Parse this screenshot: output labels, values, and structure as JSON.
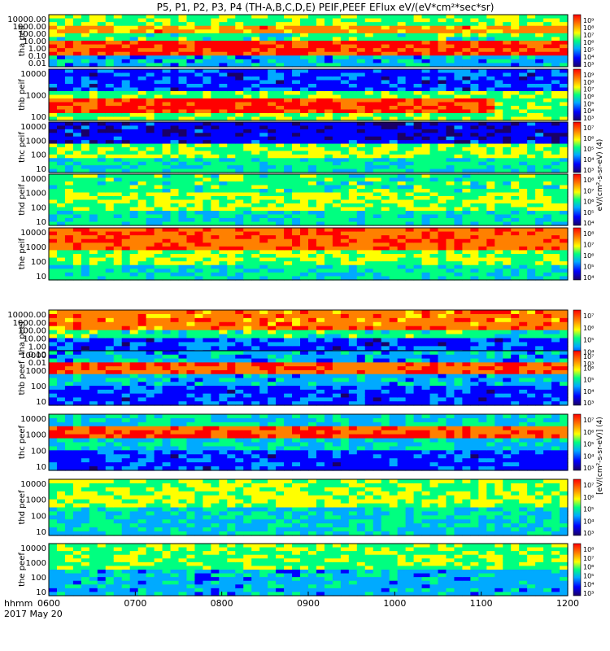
{
  "title": "P5, P1, P2, P3, P4 (TH-A,B,C,D,E) PEIF,PEEF EFlux eV/(eV*cm²*sec*sr)",
  "colormap": [
    "#1a0066",
    "#0000ff",
    "#00aaff",
    "#00ff80",
    "#ffff00",
    "#ff8000",
    "#ff0000"
  ],
  "time_axis": {
    "ticks": [
      "0600",
      "0700",
      "0800",
      "0900",
      "1000",
      "1100",
      "1200"
    ],
    "label_top": "hhmm",
    "label_bottom": "2017 May 20"
  },
  "colorbar_label_ion": "eV/(cm²-s-sr-eV)  (4)",
  "colorbar_label_electron": "[eV/(cm²-s-sr-eV)] (4)",
  "chart_data": {
    "type": "heatmap",
    "x_range": [
      "06:00",
      "12:00"
    ],
    "panels": [
      {
        "name": "tha peif",
        "ylabels": [
          "10000.00",
          "1000.00",
          "100.00",
          "10.00",
          "1.00",
          "0.10",
          "0.01"
        ],
        "cbar": [
          "10⁹",
          "10⁸",
          "10⁷",
          "10⁶",
          "10⁵",
          "10⁴",
          "10³"
        ]
      },
      {
        "name": "thb peif",
        "ylabels": [
          "10000",
          "1000",
          "100"
        ],
        "cbar": [
          "10⁹",
          "10⁸",
          "10⁷",
          "10⁶",
          "10⁵",
          "10⁴",
          "10³"
        ]
      },
      {
        "name": "thc peif",
        "ylabels": [
          "10000",
          "1000",
          "100",
          "10"
        ],
        "cbar": [
          "10⁷",
          "10⁶",
          "10⁵",
          "10⁴",
          "10³"
        ]
      },
      {
        "name": "thd peif",
        "ylabels": [
          "10000",
          "1000",
          "100",
          "10"
        ],
        "cbar": [
          "10⁸",
          "10⁷",
          "10⁶",
          "10⁵",
          "10⁴"
        ]
      },
      {
        "name": "the peif",
        "ylabels": [
          "10000",
          "1000",
          "100",
          "10"
        ],
        "cbar": [
          "10⁸",
          "10⁷",
          "10⁶",
          "10⁵",
          "10⁴"
        ]
      },
      {
        "name": "tha peef",
        "ylabels": [
          "10000.00",
          "1000.00",
          "100.00",
          "10.00",
          "1.00",
          "0.10",
          "0.01"
        ],
        "cbar": [
          "10⁷",
          "10⁶",
          "10⁵",
          "10⁴",
          "10³"
        ]
      },
      {
        "name": "thb peef",
        "ylabels": [
          "10000",
          "1000",
          "100",
          "10"
        ],
        "cbar": [
          "10⁷",
          "10⁶",
          "10⁵",
          "10⁴",
          "10³"
        ]
      },
      {
        "name": "thc peef",
        "ylabels": [
          "10000",
          "1000",
          "100",
          "10"
        ],
        "cbar": [
          "10⁷",
          "10⁶",
          "10⁵",
          "10⁴",
          "10³"
        ]
      },
      {
        "name": "thd peef",
        "ylabels": [
          "10000",
          "1000",
          "100",
          "10"
        ],
        "cbar": [
          "10⁷",
          "10⁶",
          "10⁵",
          "10⁴",
          "10³"
        ]
      },
      {
        "name": "the peef",
        "ylabels": [
          "10000",
          "1000",
          "100",
          "10"
        ],
        "cbar": [
          "10⁸",
          "10⁷",
          "10⁶",
          "10⁵",
          "10⁴",
          "10³"
        ]
      }
    ]
  }
}
